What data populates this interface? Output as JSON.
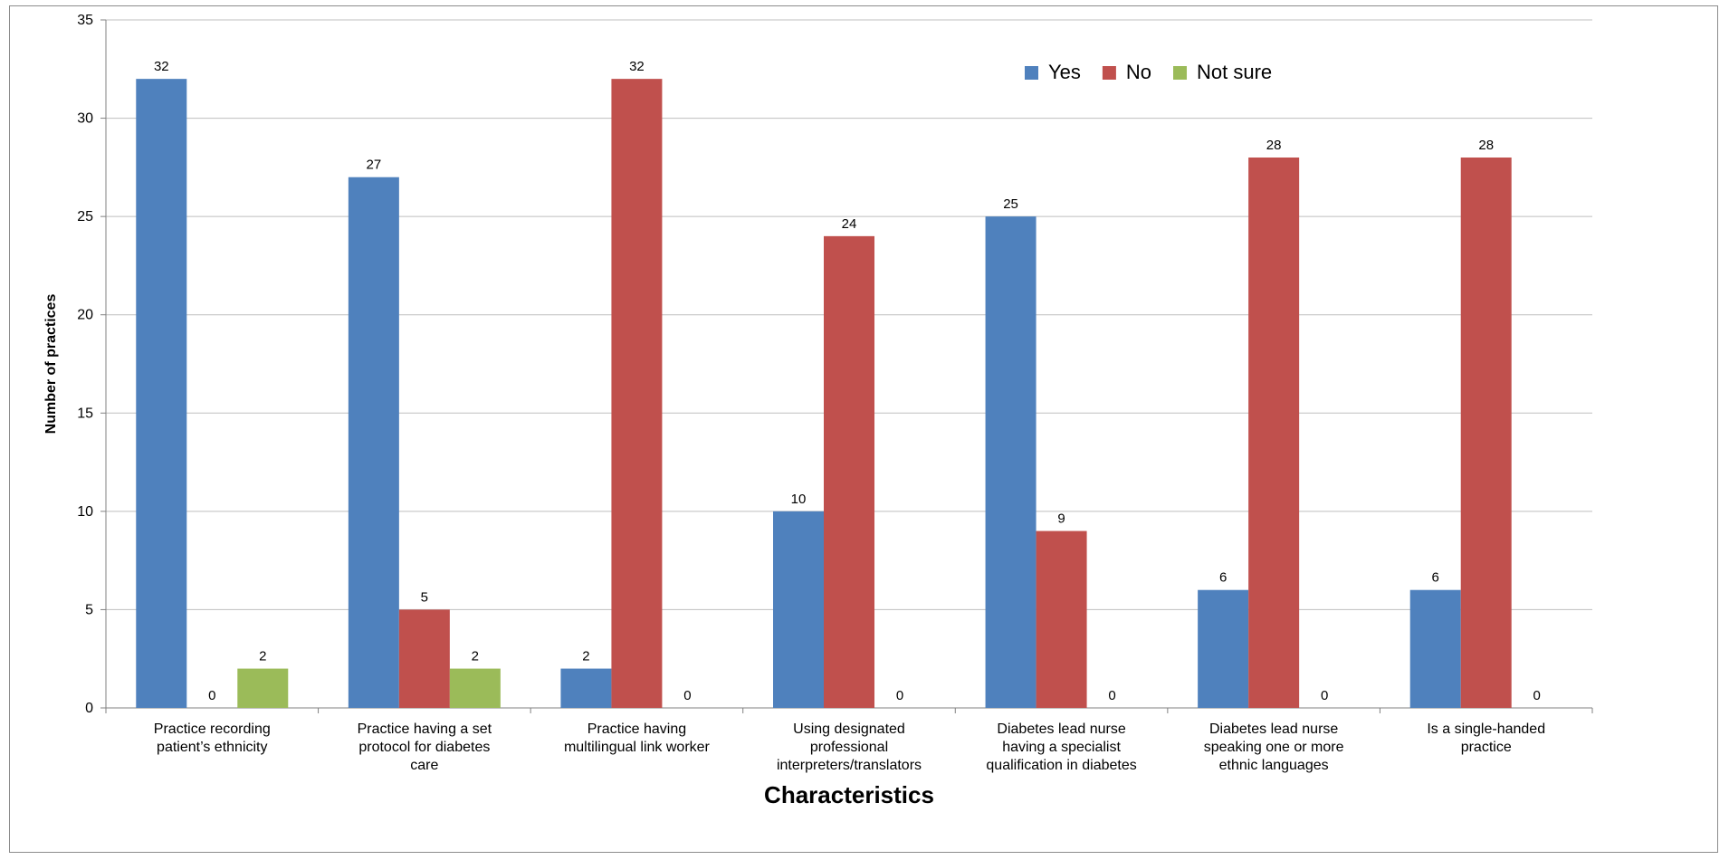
{
  "chart_data": {
    "type": "bar",
    "title": "",
    "xlabel": "Characteristics",
    "ylabel": "Number of practices",
    "ylim": [
      0,
      35
    ],
    "yticks": [
      0,
      5,
      10,
      15,
      20,
      25,
      30,
      35
    ],
    "grid": true,
    "legend_position": "top-right",
    "categories": [
      [
        "Practice recording",
        "patient’s ethnicity"
      ],
      [
        "Practice having a set",
        "protocol for diabetes",
        "care"
      ],
      [
        "Practice having",
        "multilingual link worker"
      ],
      [
        "Using designated",
        "professional",
        "interpreters/translators"
      ],
      [
        "Diabetes lead nurse",
        "having a specialist",
        "qualification in diabetes"
      ],
      [
        "Diabetes lead nurse",
        "speaking one or more",
        "ethnic languages"
      ],
      [
        "Is a single-handed",
        "practice"
      ]
    ],
    "series": [
      {
        "name": "Yes",
        "color": "#4f81bd",
        "values": [
          32,
          27,
          2,
          10,
          25,
          6,
          6
        ]
      },
      {
        "name": "No",
        "color": "#c0504d",
        "values": [
          0,
          5,
          32,
          24,
          9,
          28,
          28
        ]
      },
      {
        "name": "Not sure",
        "color": "#9bbb59",
        "values": [
          2,
          2,
          0,
          0,
          0,
          0,
          0
        ]
      }
    ]
  }
}
